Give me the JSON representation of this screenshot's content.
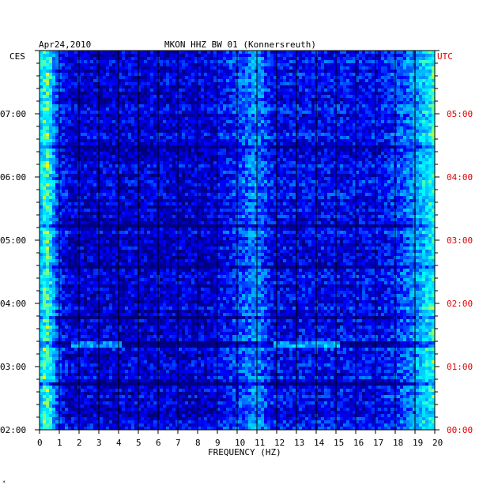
{
  "chart_data": {
    "type": "heatmap",
    "date": "Apr24,2010",
    "title": "MKON HHZ BW 01 (Konnersreuth)",
    "left_axis_label": "CES",
    "right_axis_label": "UTC",
    "xlabel": "FREQUENCY (HZ)",
    "x_ticks": [
      "0",
      "1",
      "2",
      "3",
      "4",
      "5",
      "6",
      "7",
      "8",
      "9",
      "10",
      "11",
      "12",
      "13",
      "14",
      "15",
      "16",
      "17",
      "18",
      "19",
      "20"
    ],
    "xlim": [
      0,
      20
    ],
    "left_time_ticks": [
      "07:00",
      "06:00",
      "05:00",
      "04:00",
      "03:00",
      "02:00"
    ],
    "right_time_ticks": [
      "05:00",
      "04:00",
      "03:00",
      "02:00",
      "01:00",
      "00:00"
    ],
    "time_range_ces": [
      "02:00",
      "07:15"
    ],
    "grid": true,
    "colormap": [
      "#000080",
      "#0000ff",
      "#00a0ff",
      "#00ffff",
      "#ffff00",
      "#ff0000"
    ],
    "features": [
      {
        "description_freq_hz": [
          0,
          1
        ],
        "level": "high"
      },
      {
        "description_freq_hz": [
          10.5,
          11.5
        ],
        "level": "medium"
      },
      {
        "description_freq_hz": [
          18,
          20
        ],
        "level": "high"
      }
    ]
  },
  "footer_mark": "*"
}
